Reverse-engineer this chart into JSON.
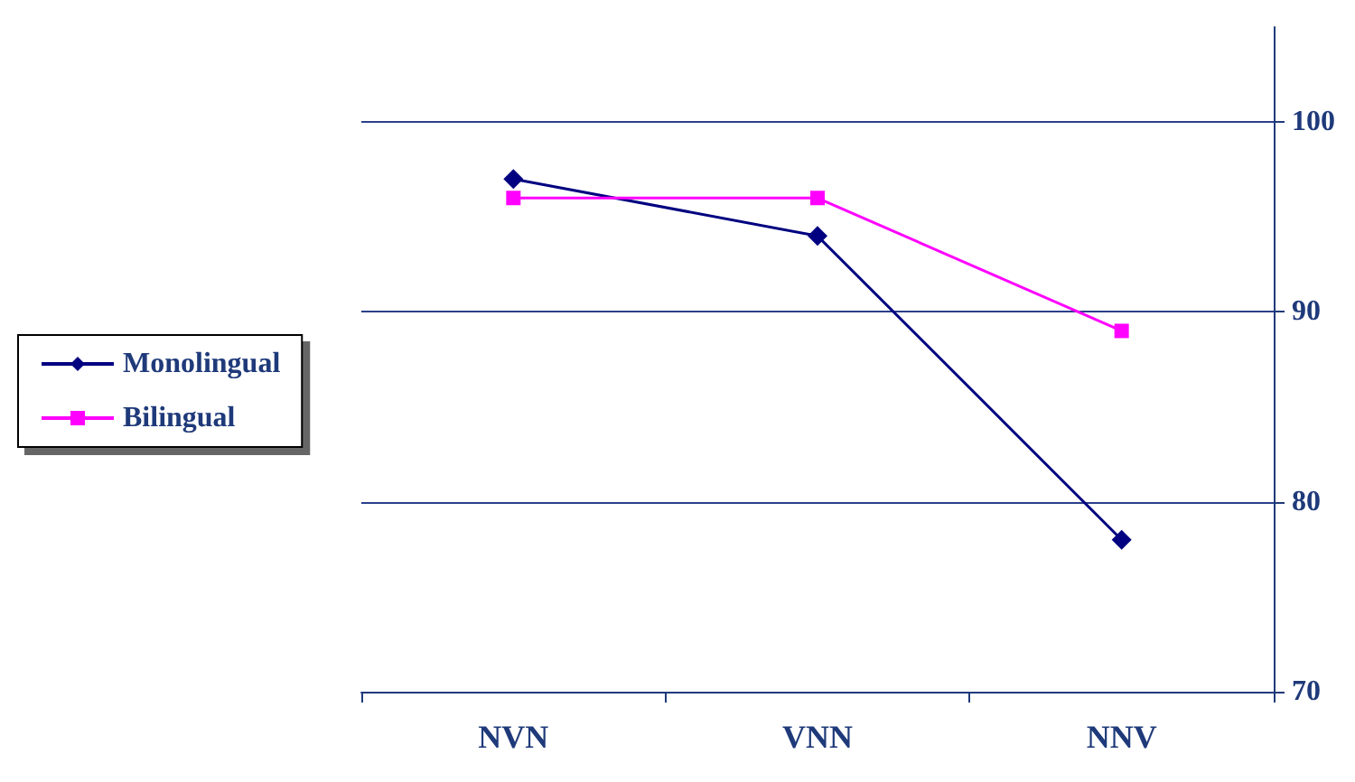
{
  "chart_data": {
    "type": "line",
    "categories": [
      "NVN",
      "VNN",
      "NNV"
    ],
    "series": [
      {
        "name": "Monolingual",
        "color": "#000080",
        "marker": "diamond",
        "values": [
          97,
          94,
          78
        ]
      },
      {
        "name": "Bilingual",
        "color": "#ff00ff",
        "marker": "square",
        "values": [
          96,
          96,
          89
        ]
      }
    ],
    "ylim": [
      70,
      105
    ],
    "yticks": [
      70,
      80,
      90,
      100
    ],
    "grid": "y",
    "legend": "left"
  }
}
